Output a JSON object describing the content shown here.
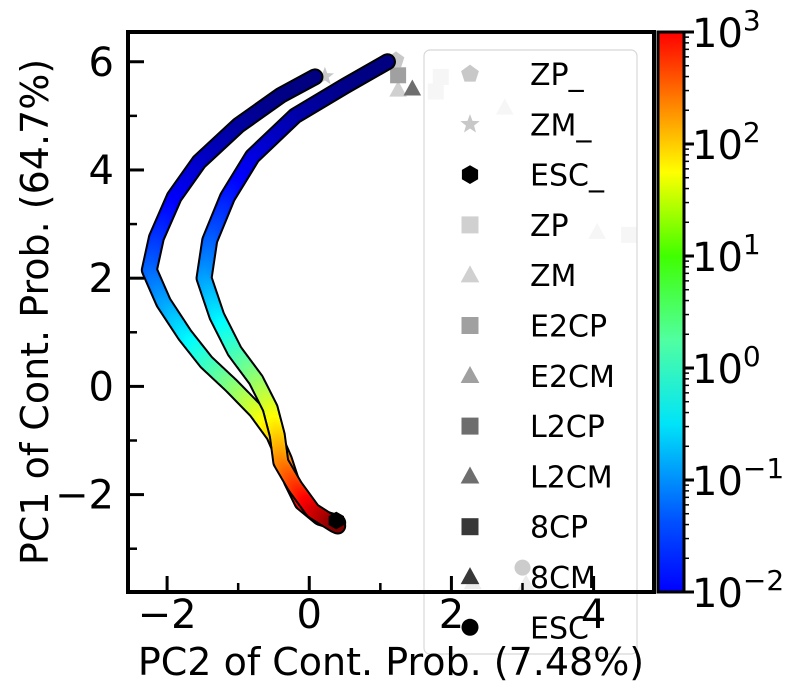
{
  "chart_data": {
    "type": "scatter",
    "xlabel": "PC2 of Cont. Prob. (7.48%)",
    "ylabel": "PC1 of Cont. Prob. (64.7%)",
    "xlim": [
      -2.55,
      4.85
    ],
    "ylim": [
      -3.8,
      6.55
    ],
    "x_major_ticks": [
      -2,
      0,
      2,
      4
    ],
    "x_tick_labels": [
      "−2",
      "0",
      "2",
      "4"
    ],
    "y_major_ticks": [
      -2,
      0,
      2,
      4,
      6
    ],
    "y_tick_labels": [
      "−2",
      "0",
      "2",
      "4",
      "6"
    ],
    "grid": false,
    "legend_location": "upper right",
    "colorbar": {
      "scale": "log",
      "range": [
        0.01,
        1000
      ],
      "colormap": "jet",
      "tick_values": [
        0.01,
        0.1,
        1,
        10,
        100,
        1000
      ],
      "tick_labels": [
        {
          "base": "10",
          "exp": "−2"
        },
        {
          "base": "10",
          "exp": "−1"
        },
        {
          "base": "10",
          "exp": "0"
        },
        {
          "base": "10",
          "exp": "1"
        },
        {
          "base": "10",
          "exp": "2"
        },
        {
          "base": "10",
          "exp": "3"
        }
      ]
    },
    "trajectories": [
      {
        "points": [
          [
            0.08,
            5.72
          ],
          [
            -0.4,
            5.38
          ],
          [
            -1.0,
            4.82
          ],
          [
            -1.55,
            4.15
          ],
          [
            -1.9,
            3.5
          ],
          [
            -2.15,
            2.75
          ],
          [
            -2.25,
            2.15
          ],
          [
            -2.05,
            1.55
          ],
          [
            -1.75,
            0.95
          ],
          [
            -1.45,
            0.45
          ],
          [
            -1.1,
            0.02
          ],
          [
            -0.75,
            -0.45
          ],
          [
            -0.5,
            -0.9
          ],
          [
            -0.35,
            -1.35
          ],
          [
            -0.25,
            -1.75
          ],
          [
            -0.1,
            -2.15
          ],
          [
            0.15,
            -2.42
          ],
          [
            0.4,
            -2.52
          ]
        ],
        "time_start": 0.01,
        "time_end": 1000
      },
      {
        "points": [
          [
            1.1,
            6.0
          ],
          [
            0.5,
            5.55
          ],
          [
            -0.2,
            5.0
          ],
          [
            -0.8,
            4.25
          ],
          [
            -1.15,
            3.5
          ],
          [
            -1.4,
            2.7
          ],
          [
            -1.48,
            2.0
          ],
          [
            -1.3,
            1.3
          ],
          [
            -1.05,
            0.65
          ],
          [
            -0.75,
            0.12
          ],
          [
            -0.55,
            -0.4
          ],
          [
            -0.45,
            -0.9
          ],
          [
            -0.4,
            -1.4
          ],
          [
            -0.2,
            -1.85
          ],
          [
            0.05,
            -2.3
          ],
          [
            0.35,
            -2.55
          ],
          [
            0.4,
            -2.58
          ]
        ],
        "time_start": 0.01,
        "time_end": 1000
      }
    ],
    "legend": [
      {
        "label": "ZP_",
        "marker": "pentagon",
        "color": "#c8c8c8"
      },
      {
        "label": "ZM_",
        "marker": "star",
        "color": "#c8c8c8"
      },
      {
        "label": "ESC_",
        "marker": "hexagon",
        "color": "#000000"
      },
      {
        "label": "ZP",
        "marker": "square",
        "color": "#d0d0d0"
      },
      {
        "label": "ZM",
        "marker": "triangle",
        "color": "#d0d0d0"
      },
      {
        "label": "E2CP",
        "marker": "square",
        "color": "#a0a0a0"
      },
      {
        "label": "E2CM",
        "marker": "triangle",
        "color": "#a0a0a0"
      },
      {
        "label": "L2CP",
        "marker": "square",
        "color": "#6e6e6e"
      },
      {
        "label": "L2CM",
        "marker": "triangle",
        "color": "#6e6e6e"
      },
      {
        "label": "8CP",
        "marker": "square",
        "color": "#383838"
      },
      {
        "label": "8CM",
        "marker": "triangle",
        "color": "#383838"
      },
      {
        "label": "ESC",
        "marker": "circle",
        "color": "#000000"
      }
    ],
    "markers": [
      {
        "series": "ZP_",
        "x": 1.22,
        "y": 6.03
      },
      {
        "series": "ZM_",
        "x": 0.22,
        "y": 5.73
      },
      {
        "series": "ESC_",
        "x": 0.38,
        "y": -2.48
      },
      {
        "series": "ZP",
        "x": 1.85,
        "y": 5.72
      },
      {
        "series": "ZP",
        "x": 1.78,
        "y": 5.45
      },
      {
        "series": "ZM",
        "x": 1.25,
        "y": 5.48
      },
      {
        "series": "ZM",
        "x": 2.75,
        "y": 5.15
      },
      {
        "series": "ZM",
        "x": 4.05,
        "y": 2.85
      },
      {
        "series": "ZP",
        "x": 4.5,
        "y": 2.8
      },
      {
        "series": "E2CP",
        "x": 1.25,
        "y": 5.75
      },
      {
        "series": "L2CM",
        "x": 1.45,
        "y": 5.5
      },
      {
        "series": "ESC",
        "x": 0.4,
        "y": -2.58
      },
      {
        "series": "ESC",
        "x": 3.0,
        "y": -3.35
      },
      {
        "series": "E2CM",
        "x": 2.3,
        "y": -3.62
      },
      {
        "series": "E2CM",
        "x": 3.05,
        "y": -3.65
      }
    ]
  }
}
